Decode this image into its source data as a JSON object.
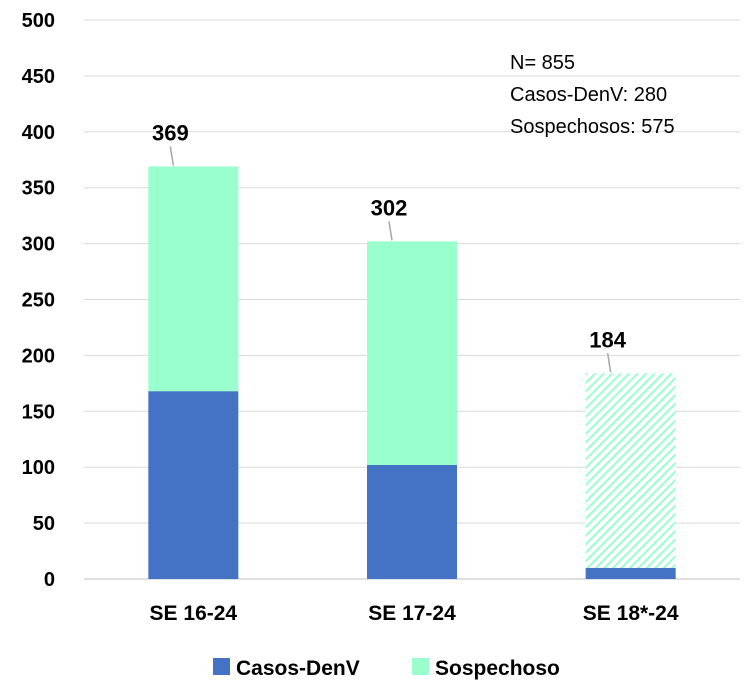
{
  "chart_data": {
    "type": "bar",
    "stacked": true,
    "categories": [
      "SE 16-24",
      "SE 17-24",
      "SE 18*-24"
    ],
    "series": [
      {
        "name": "Casos-DenV",
        "values": [
          168,
          102,
          10
        ],
        "color": "#4472C4"
      },
      {
        "name": "Sospechoso",
        "values": [
          201,
          200,
          174
        ],
        "color": "#99FFCC"
      }
    ],
    "totals": [
      369,
      302,
      184
    ],
    "hatched_category": "SE 18*-24",
    "ylim": [
      0,
      500
    ],
    "yticks": [
      0,
      50,
      100,
      150,
      200,
      250,
      300,
      350,
      400,
      450,
      500
    ],
    "grid": true,
    "legend": "bottom",
    "title": "",
    "xlabel": "",
    "ylabel": "",
    "annotation_lines": [
      "N= 855",
      "Casos-DenV: 280",
      "Sospechosos: 575"
    ]
  }
}
